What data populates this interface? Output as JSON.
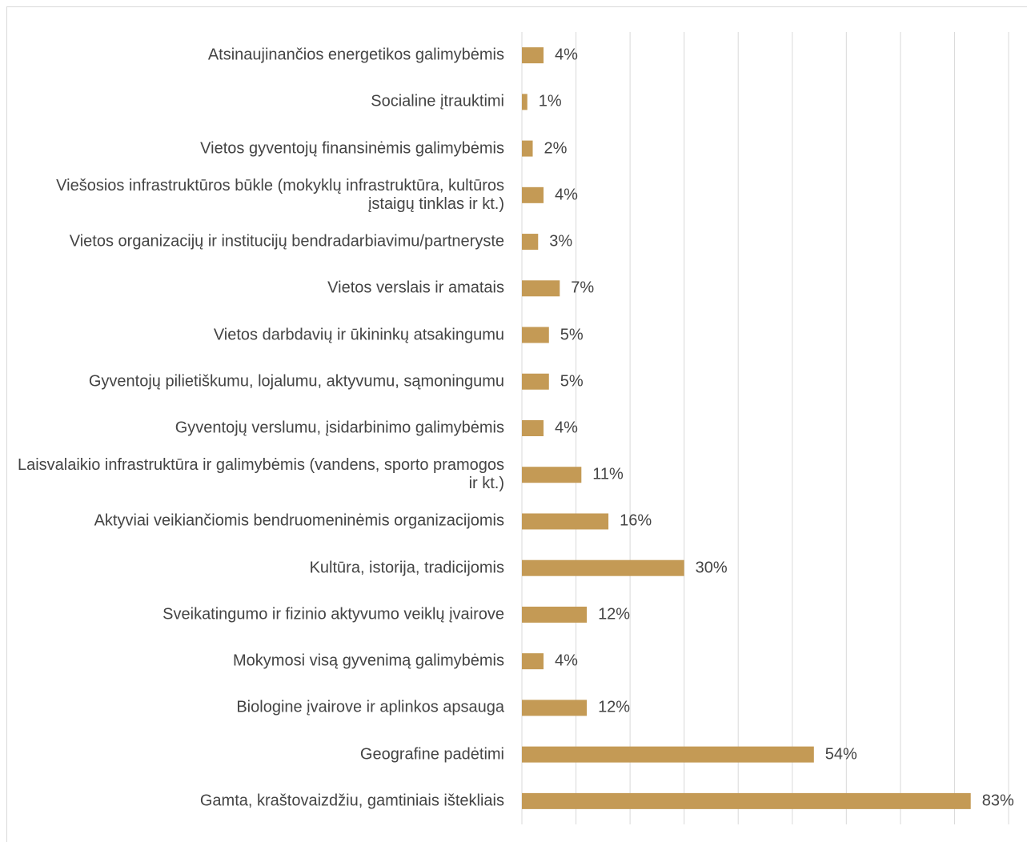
{
  "chart_data": {
    "type": "barh",
    "categories": [
      "Atsinaujinančios energetikos galimybėmis",
      "Socialine įtrauktimi",
      "Vietos gyventojų finansinėmis galimybėmis",
      "Viešosios infrastruktūros būkle (mokyklų infrastruktūra, kultūros įstaigų tinklas ir kt.)",
      "Vietos organizacijų ir institucijų bendradarbiavimu/partneryste",
      "Vietos verslais ir amatais",
      "Vietos darbdavių ir ūkininkų atsakingumu",
      "Gyventojų pilietiškumu, lojalumu, aktyvumu, sąmoningumu",
      "Gyventojų verslumu, įsidarbinimo galimybėmis",
      "Laisvalaikio infrastruktūra ir galimybėmis (vandens, sporto pramogos ir kt.)",
      "Aktyviai veikiančiomis bendruomeninėmis organizacijomis",
      "Kultūra, istorija, tradicijomis",
      "Sveikatingumo ir fizinio aktyvumo veiklų įvairove",
      "Mokymosi visą gyvenimą galimybėmis",
      "Biologine įvairove ir aplinkos apsauga",
      "Geografine padėtimi",
      "Gamta, kraštovaizdžiu, gamtiniais ištekliais"
    ],
    "values": [
      4,
      1,
      2,
      4,
      3,
      7,
      5,
      5,
      4,
      11,
      16,
      30,
      12,
      4,
      12,
      54,
      83
    ],
    "value_labels": [
      "4%",
      "1%",
      "2%",
      "4%",
      "3%",
      "7%",
      "5%",
      "5%",
      "4%",
      "11%",
      "16%",
      "30%",
      "12%",
      "4%",
      "12%",
      "54%",
      "83%"
    ],
    "color": "#c49a55",
    "xlim": [
      0,
      90
    ],
    "xticks": [
      0,
      10,
      20,
      30,
      40,
      50,
      60,
      70,
      80,
      90
    ],
    "tick_labels": false,
    "grid": true
  }
}
